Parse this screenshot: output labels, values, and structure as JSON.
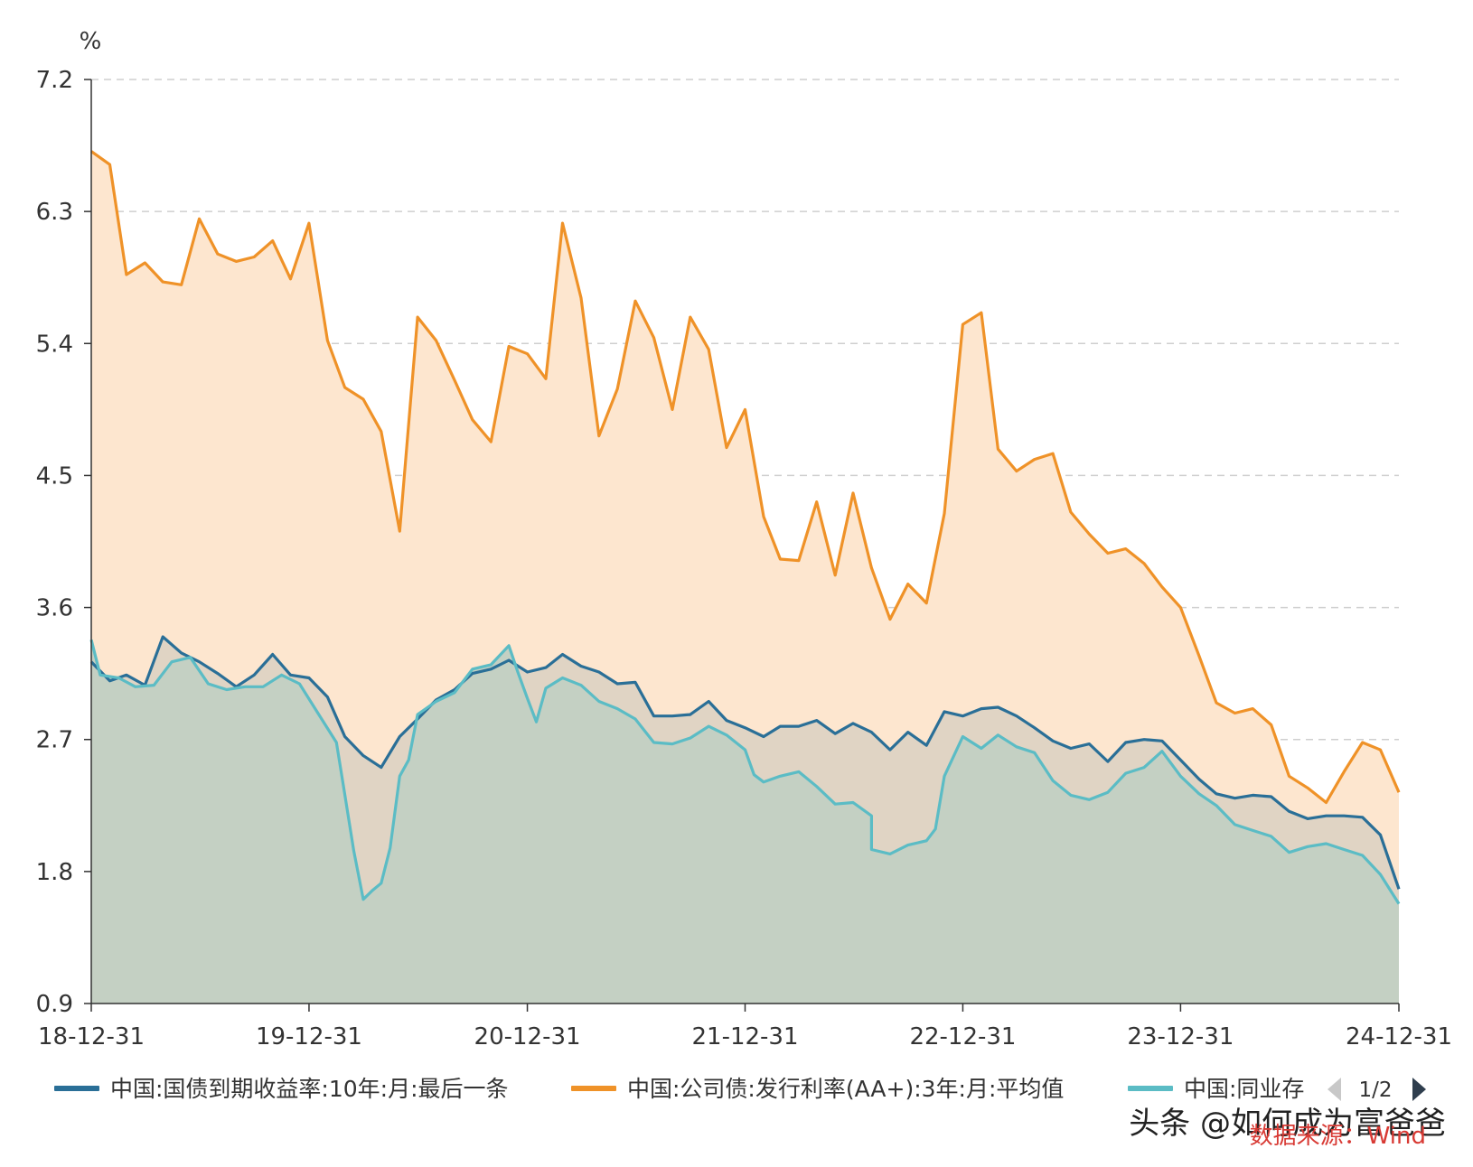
{
  "chart_data": {
    "type": "area",
    "unit": "%",
    "ylim": [
      0.9,
      7.2
    ],
    "yticks": [
      "0.9",
      "1.8",
      "2.7",
      "3.6",
      "4.5",
      "5.4",
      "6.3",
      "7.2"
    ],
    "xlim": [
      "2018-12-31",
      "2024-12-31"
    ],
    "xticks": [
      {
        "label": "18-12-31",
        "date": "2018-12-31"
      },
      {
        "label": "19-12-31",
        "date": "2019-12-31"
      },
      {
        "label": "20-12-31",
        "date": "2020-12-31"
      },
      {
        "label": "21-12-31",
        "date": "2021-12-31"
      },
      {
        "label": "22-12-31",
        "date": "2022-12-31"
      },
      {
        "label": "23-12-31",
        "date": "2023-12-31"
      },
      {
        "label": "24-12-31",
        "date": "2024-12-31"
      }
    ],
    "grid": true,
    "legend_position": "bottom",
    "pager": "1/2",
    "series": [
      {
        "name": "中国:公司债:发行利率(AA+):3年:月:平均值",
        "color": "#ef9228",
        "fill": "#fde6cf",
        "points": [
          [
            "2018-12-31",
            6.71
          ],
          [
            "2019-01-31",
            6.62
          ],
          [
            "2019-02-28",
            5.87
          ],
          [
            "2019-03-31",
            5.95
          ],
          [
            "2019-04-30",
            5.82
          ],
          [
            "2019-05-31",
            5.8
          ],
          [
            "2019-06-30",
            6.25
          ],
          [
            "2019-07-31",
            6.01
          ],
          [
            "2019-08-31",
            5.96
          ],
          [
            "2019-09-30",
            5.99
          ],
          [
            "2019-10-31",
            6.1
          ],
          [
            "2019-11-30",
            5.84
          ],
          [
            "2019-12-31",
            6.22
          ],
          [
            "2020-01-31",
            5.42
          ],
          [
            "2020-02-29",
            5.1
          ],
          [
            "2020-03-31",
            5.02
          ],
          [
            "2020-04-30",
            4.8
          ],
          [
            "2020-05-31",
            4.12
          ],
          [
            "2020-06-30",
            5.58
          ],
          [
            "2020-07-31",
            5.42
          ],
          [
            "2020-08-31",
            5.15
          ],
          [
            "2020-09-30",
            4.88
          ],
          [
            "2020-10-31",
            4.73
          ],
          [
            "2020-11-30",
            5.38
          ],
          [
            "2020-12-31",
            5.33
          ],
          [
            "2021-01-31",
            5.16
          ],
          [
            "2021-02-28",
            6.22
          ],
          [
            "2021-03-31",
            5.71
          ],
          [
            "2021-04-30",
            4.77
          ],
          [
            "2021-05-31",
            5.09
          ],
          [
            "2021-06-30",
            5.69
          ],
          [
            "2021-07-31",
            5.44
          ],
          [
            "2021-08-31",
            4.95
          ],
          [
            "2021-09-30",
            5.58
          ],
          [
            "2021-10-31",
            5.36
          ],
          [
            "2021-11-30",
            4.69
          ],
          [
            "2021-12-31",
            4.95
          ],
          [
            "2022-01-31",
            4.22
          ],
          [
            "2022-02-28",
            3.93
          ],
          [
            "2022-03-31",
            3.92
          ],
          [
            "2022-04-30",
            4.32
          ],
          [
            "2022-05-31",
            3.82
          ],
          [
            "2022-06-30",
            4.38
          ],
          [
            "2022-07-31",
            3.87
          ],
          [
            "2022-08-31",
            3.52
          ],
          [
            "2022-09-30",
            3.76
          ],
          [
            "2022-10-31",
            3.63
          ],
          [
            "2022-11-30",
            4.24
          ],
          [
            "2022-12-31",
            5.53
          ],
          [
            "2023-01-31",
            5.61
          ],
          [
            "2023-02-28",
            4.68
          ],
          [
            "2023-03-31",
            4.53
          ],
          [
            "2023-04-30",
            4.61
          ],
          [
            "2023-05-31",
            4.65
          ],
          [
            "2023-06-30",
            4.25
          ],
          [
            "2023-07-31",
            4.1
          ],
          [
            "2023-08-31",
            3.97
          ],
          [
            "2023-09-30",
            4.0
          ],
          [
            "2023-10-31",
            3.9
          ],
          [
            "2023-11-30",
            3.74
          ],
          [
            "2023-12-31",
            3.6
          ],
          [
            "2024-01-31",
            3.27
          ],
          [
            "2024-02-29",
            2.95
          ],
          [
            "2024-03-31",
            2.88
          ],
          [
            "2024-04-30",
            2.91
          ],
          [
            "2024-05-31",
            2.8
          ],
          [
            "2024-06-30",
            2.45
          ],
          [
            "2024-07-31",
            2.37
          ],
          [
            "2024-08-31",
            2.27
          ],
          [
            "2024-09-30",
            2.48
          ],
          [
            "2024-10-31",
            2.68
          ],
          [
            "2024-11-30",
            2.63
          ],
          [
            "2024-12-31",
            2.34
          ]
        ]
      },
      {
        "name": "中国:国债到期收益率:10年:月:最后一条",
        "color": "#2a6f97",
        "fill": "#e0d4c4",
        "points": [
          [
            "2018-12-31",
            3.23
          ],
          [
            "2019-01-31",
            3.1
          ],
          [
            "2019-02-28",
            3.14
          ],
          [
            "2019-03-31",
            3.07
          ],
          [
            "2019-04-30",
            3.4
          ],
          [
            "2019-05-31",
            3.29
          ],
          [
            "2019-06-30",
            3.23
          ],
          [
            "2019-07-31",
            3.15
          ],
          [
            "2019-08-31",
            3.06
          ],
          [
            "2019-09-30",
            3.14
          ],
          [
            "2019-10-31",
            3.28
          ],
          [
            "2019-11-30",
            3.14
          ],
          [
            "2019-12-31",
            3.12
          ],
          [
            "2020-01-31",
            2.99
          ],
          [
            "2020-02-29",
            2.72
          ],
          [
            "2020-03-31",
            2.59
          ],
          [
            "2020-04-30",
            2.51
          ],
          [
            "2020-05-31",
            2.72
          ],
          [
            "2020-06-30",
            2.84
          ],
          [
            "2020-07-31",
            2.97
          ],
          [
            "2020-08-31",
            3.04
          ],
          [
            "2020-09-30",
            3.15
          ],
          [
            "2020-10-31",
            3.18
          ],
          [
            "2020-11-30",
            3.24
          ],
          [
            "2020-12-31",
            3.16
          ],
          [
            "2021-01-31",
            3.19
          ],
          [
            "2021-02-28",
            3.28
          ],
          [
            "2021-03-31",
            3.2
          ],
          [
            "2021-04-30",
            3.16
          ],
          [
            "2021-05-31",
            3.08
          ],
          [
            "2021-06-30",
            3.09
          ],
          [
            "2021-07-31",
            2.86
          ],
          [
            "2021-08-31",
            2.86
          ],
          [
            "2021-09-30",
            2.87
          ],
          [
            "2021-10-31",
            2.96
          ],
          [
            "2021-11-30",
            2.83
          ],
          [
            "2021-12-31",
            2.78
          ],
          [
            "2022-01-31",
            2.72
          ],
          [
            "2022-02-28",
            2.79
          ],
          [
            "2022-03-31",
            2.79
          ],
          [
            "2022-04-30",
            2.83
          ],
          [
            "2022-05-31",
            2.74
          ],
          [
            "2022-06-30",
            2.81
          ],
          [
            "2022-07-31",
            2.75
          ],
          [
            "2022-08-31",
            2.63
          ],
          [
            "2022-09-30",
            2.75
          ],
          [
            "2022-10-31",
            2.66
          ],
          [
            "2022-11-30",
            2.89
          ],
          [
            "2022-12-31",
            2.86
          ],
          [
            "2023-01-31",
            2.91
          ],
          [
            "2023-02-28",
            2.92
          ],
          [
            "2023-03-31",
            2.86
          ],
          [
            "2023-04-30",
            2.78
          ],
          [
            "2023-05-31",
            2.69
          ],
          [
            "2023-06-30",
            2.64
          ],
          [
            "2023-07-31",
            2.67
          ],
          [
            "2023-08-31",
            2.55
          ],
          [
            "2023-09-30",
            2.68
          ],
          [
            "2023-10-31",
            2.7
          ],
          [
            "2023-11-30",
            2.69
          ],
          [
            "2023-12-31",
            2.56
          ],
          [
            "2024-01-31",
            2.43
          ],
          [
            "2024-02-29",
            2.33
          ],
          [
            "2024-03-31",
            2.3
          ],
          [
            "2024-04-30",
            2.32
          ],
          [
            "2024-05-31",
            2.31
          ],
          [
            "2024-06-30",
            2.21
          ],
          [
            "2024-07-31",
            2.16
          ],
          [
            "2024-08-31",
            2.18
          ],
          [
            "2024-09-30",
            2.18
          ],
          [
            "2024-10-31",
            2.17
          ],
          [
            "2024-11-30",
            2.05
          ],
          [
            "2024-12-31",
            1.68
          ]
        ]
      },
      {
        "name": "中国:同业存",
        "color": "#5bbcc5",
        "fill": "#c4d0c3",
        "points": [
          [
            "2018-12-31",
            3.38
          ],
          [
            "2019-01-15",
            3.14
          ],
          [
            "2019-02-15",
            3.12
          ],
          [
            "2019-03-15",
            3.06
          ],
          [
            "2019-04-15",
            3.07
          ],
          [
            "2019-05-15",
            3.23
          ],
          [
            "2019-06-15",
            3.26
          ],
          [
            "2019-07-15",
            3.08
          ],
          [
            "2019-08-15",
            3.04
          ],
          [
            "2019-09-15",
            3.06
          ],
          [
            "2019-10-15",
            3.06
          ],
          [
            "2019-11-15",
            3.14
          ],
          [
            "2019-12-15",
            3.08
          ],
          [
            "2020-01-15",
            2.88
          ],
          [
            "2020-02-15",
            2.68
          ],
          [
            "2020-02-28",
            2.35
          ],
          [
            "2020-03-15",
            1.94
          ],
          [
            "2020-03-31",
            1.61
          ],
          [
            "2020-04-15",
            1.67
          ],
          [
            "2020-04-30",
            1.72
          ],
          [
            "2020-05-15",
            1.96
          ],
          [
            "2020-05-31",
            2.45
          ],
          [
            "2020-06-15",
            2.56
          ],
          [
            "2020-06-30",
            2.87
          ],
          [
            "2020-07-31",
            2.96
          ],
          [
            "2020-08-31",
            3.02
          ],
          [
            "2020-09-30",
            3.18
          ],
          [
            "2020-10-31",
            3.21
          ],
          [
            "2020-11-30",
            3.34
          ],
          [
            "2020-12-15",
            3.16
          ],
          [
            "2020-12-31",
            2.98
          ],
          [
            "2021-01-15",
            2.82
          ],
          [
            "2021-01-31",
            3.05
          ],
          [
            "2021-02-28",
            3.12
          ],
          [
            "2021-03-31",
            3.07
          ],
          [
            "2021-04-30",
            2.96
          ],
          [
            "2021-05-31",
            2.91
          ],
          [
            "2021-06-30",
            2.84
          ],
          [
            "2021-07-31",
            2.68
          ],
          [
            "2021-08-31",
            2.67
          ],
          [
            "2021-09-30",
            2.71
          ],
          [
            "2021-10-31",
            2.79
          ],
          [
            "2021-11-30",
            2.73
          ],
          [
            "2021-12-31",
            2.63
          ],
          [
            "2022-01-15",
            2.46
          ],
          [
            "2022-01-31",
            2.41
          ],
          [
            "2022-02-28",
            2.45
          ],
          [
            "2022-03-31",
            2.48
          ],
          [
            "2022-04-30",
            2.38
          ],
          [
            "2022-05-31",
            2.26
          ],
          [
            "2022-06-30",
            2.27
          ],
          [
            "2022-07-31",
            2.18
          ],
          [
            "2022-07-31",
            1.95
          ],
          [
            "2022-08-31",
            1.92
          ],
          [
            "2022-09-30",
            1.98
          ],
          [
            "2022-10-31",
            2.01
          ],
          [
            "2022-11-15",
            2.09
          ],
          [
            "2022-11-30",
            2.45
          ],
          [
            "2022-12-31",
            2.72
          ],
          [
            "2023-01-31",
            2.64
          ],
          [
            "2023-02-28",
            2.73
          ],
          [
            "2023-03-31",
            2.65
          ],
          [
            "2023-04-30",
            2.61
          ],
          [
            "2023-05-31",
            2.42
          ],
          [
            "2023-06-30",
            2.32
          ],
          [
            "2023-07-31",
            2.29
          ],
          [
            "2023-08-31",
            2.34
          ],
          [
            "2023-09-30",
            2.47
          ],
          [
            "2023-10-31",
            2.51
          ],
          [
            "2023-11-30",
            2.62
          ],
          [
            "2023-12-31",
            2.45
          ],
          [
            "2024-01-31",
            2.33
          ],
          [
            "2024-02-29",
            2.25
          ],
          [
            "2024-03-31",
            2.12
          ],
          [
            "2024-04-30",
            2.08
          ],
          [
            "2024-05-31",
            2.04
          ],
          [
            "2024-06-30",
            1.93
          ],
          [
            "2024-07-31",
            1.97
          ],
          [
            "2024-08-31",
            1.99
          ],
          [
            "2024-09-30",
            1.95
          ],
          [
            "2024-10-31",
            1.91
          ],
          [
            "2024-11-30",
            1.78
          ],
          [
            "2024-12-31",
            1.58
          ]
        ]
      }
    ]
  },
  "watermark": {
    "text": "头条 @如何成为富爸爸",
    "source": "数据来源：Wind"
  }
}
